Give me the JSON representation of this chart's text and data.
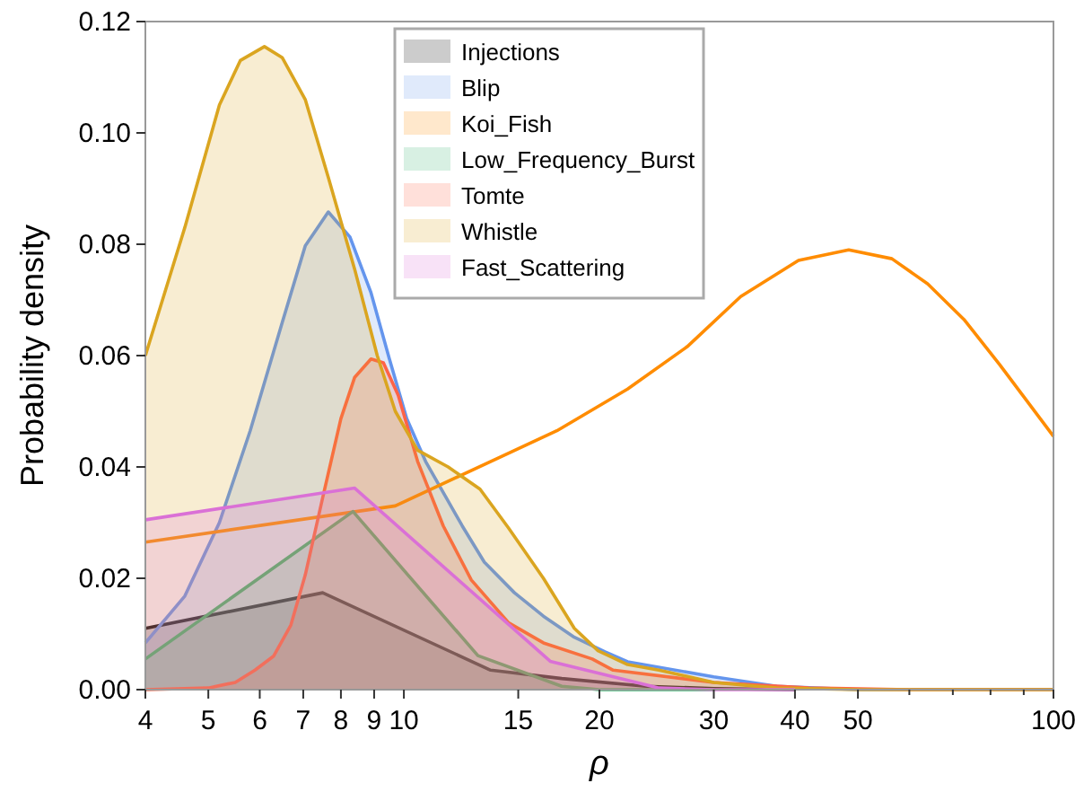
{
  "chart_data": {
    "type": "area",
    "xlabel": "ρ",
    "ylabel": "Probability density",
    "log": "x",
    "grid": false,
    "legend": "top",
    "xlim": [
      4,
      100
    ],
    "ylim": [
      0,
      0.12
    ],
    "xticks": [
      4,
      5,
      6,
      7,
      8,
      9,
      10,
      15,
      20,
      30,
      40,
      50,
      {
        "value": 60,
        "label": null
      },
      {
        "value": 70,
        "label": null
      },
      {
        "value": 80,
        "label": null
      },
      {
        "value": 90,
        "label": null
      },
      100
    ],
    "yticks": [
      {
        "value": 0,
        "label": "0.00"
      },
      {
        "value": 0.02,
        "label": "0.02"
      },
      {
        "value": 0.04,
        "label": "0.04"
      },
      {
        "value": 0.06,
        "label": "0.06"
      },
      {
        "value": 0.08,
        "label": "0.08"
      },
      {
        "value": 0.1,
        "label": "0.10"
      },
      {
        "value": 0.12,
        "label": "0.12"
      }
    ],
    "series": [
      {
        "name": "Injections",
        "color": "#000000",
        "x": [
          4,
          7.5,
          13.6,
          17.5,
          23.6,
          30,
          40
        ],
        "values": [
          0.011,
          0.0174,
          0.0035,
          0.002,
          0.0006,
          0.0002,
          0
        ]
      },
      {
        "name": "Blip",
        "color": "#6495ed",
        "x": [
          4,
          4.6,
          5.2,
          5.8,
          6.5,
          7.05,
          7.65,
          8.26,
          8.9,
          9.5,
          10.1,
          10.8,
          12.3,
          13.3,
          14.8,
          16.4,
          18.3,
          20.4,
          22.1,
          30,
          37.5,
          50,
          100
        ],
        "values": [
          0.0084,
          0.0168,
          0.03,
          0.0465,
          0.066,
          0.0797,
          0.0858,
          0.0813,
          0.0713,
          0.0594,
          0.0487,
          0.041,
          0.0294,
          0.0229,
          0.0174,
          0.0132,
          0.0094,
          0.0068,
          0.005,
          0.0023,
          0.0006,
          0,
          0
        ]
      },
      {
        "name": "Koi_Fish",
        "type": "line",
        "color": "#ff8c00",
        "x": [
          4,
          9.7,
          17.2,
          22.1,
          27.3,
          33,
          40.5,
          48.4,
          56.4,
          64,
          72.8,
          82.6,
          100
        ],
        "values": [
          0.0265,
          0.033,
          0.0465,
          0.054,
          0.0616,
          0.0706,
          0.0771,
          0.079,
          0.0774,
          0.0729,
          0.0665,
          0.0584,
          0.0455
        ]
      },
      {
        "name": "Low_Frequency_Burst",
        "color": "#3cb371",
        "x": [
          4,
          8.35,
          13,
          17.5,
          20,
          30
        ],
        "values": [
          0.0055,
          0.032,
          0.0061,
          0.0006,
          0,
          0
        ]
      },
      {
        "name": "Tomte",
        "color": "#ff6347",
        "x": [
          4,
          5,
          5.5,
          5.9,
          6.3,
          6.7,
          7.05,
          7.5,
          8,
          8.4,
          8.9,
          9.3,
          9.8,
          10.5,
          11.5,
          12.7,
          14.5,
          16.4,
          19.5,
          21,
          30,
          42,
          60,
          100
        ],
        "values": [
          0,
          0.0003,
          0.0013,
          0.0035,
          0.006,
          0.0116,
          0.0206,
          0.0345,
          0.0487,
          0.0561,
          0.0594,
          0.0587,
          0.0529,
          0.041,
          0.0294,
          0.0197,
          0.012,
          0.0084,
          0.0055,
          0.0035,
          0.0013,
          0.0003,
          0,
          0
        ]
      },
      {
        "name": "Whistle",
        "color": "#daa520",
        "x": [
          4,
          4.6,
          5.2,
          5.6,
          6.1,
          6.5,
          7.05,
          7.65,
          8.4,
          9.1,
          9.7,
          10.5,
          11.7,
          13.1,
          14.5,
          16.4,
          18.3,
          19.9,
          22.1,
          24.7,
          30,
          37.5,
          50,
          100
        ],
        "values": [
          0.06,
          0.083,
          0.105,
          0.113,
          0.1155,
          0.1135,
          0.106,
          0.092,
          0.0755,
          0.06,
          0.05,
          0.043,
          0.04,
          0.036,
          0.029,
          0.02,
          0.011,
          0.007,
          0.0045,
          0.0035,
          0.0013,
          0.0003,
          0,
          0
        ]
      },
      {
        "name": "Fast_Scattering",
        "color": "#da70d6",
        "x": [
          4,
          8.4,
          16.8,
          24.7,
          30,
          40
        ],
        "values": [
          0.0305,
          0.0362,
          0.0051,
          0.0003,
          0,
          0
        ]
      }
    ]
  }
}
